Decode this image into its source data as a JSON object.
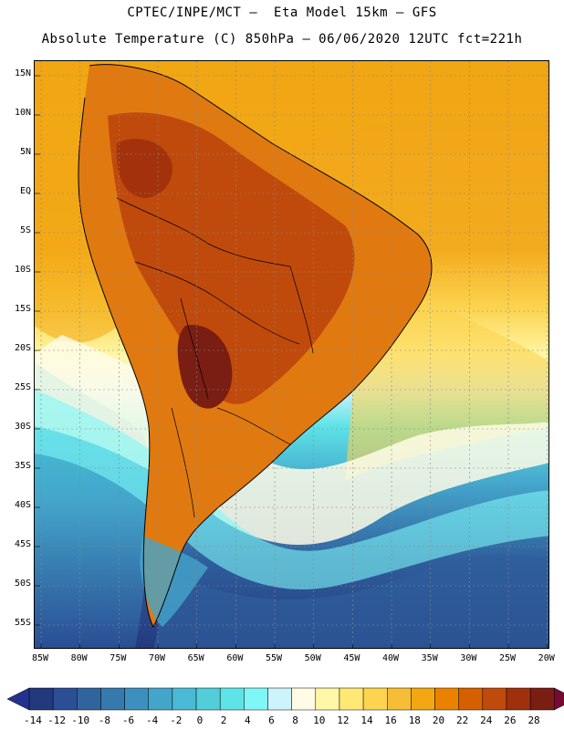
{
  "title_line1": "CPTEC/INPE/MCT –  Eta Model 15km – GFS",
  "title_line2": "Absolute Temperature (C) 850hPa – 06/06/2020 12UTC fct=221h",
  "lat_labels": [
    "15N",
    "10N",
    "5N",
    "EQ",
    "5S",
    "10S",
    "15S",
    "20S",
    "25S",
    "30S",
    "35S",
    "40S",
    "45S",
    "50S",
    "55S"
  ],
  "lon_labels": [
    "85W",
    "80W",
    "75W",
    "70W",
    "65W",
    "60W",
    "55W",
    "50W",
    "45W",
    "40W",
    "35W",
    "30W",
    "25W",
    "20W"
  ],
  "colorbar": {
    "labels": [
      "-14",
      "-12",
      "-10",
      "-8",
      "-6",
      "-4",
      "-2",
      "0",
      "2",
      "4",
      "6",
      "8",
      "10",
      "12",
      "14",
      "16",
      "18",
      "20",
      "22",
      "24",
      "26",
      "28"
    ],
    "colors": [
      "#22397e",
      "#2a4f95",
      "#30649f",
      "#3579ad",
      "#3d8fbe",
      "#44a5cb",
      "#4bbad6",
      "#51ced9",
      "#5ee3e7",
      "#7ff7f7",
      "#cdf3fb",
      "#fffbe6",
      "#fff6a6",
      "#ffe873",
      "#fcd44f",
      "#f6bd37",
      "#f3a712",
      "#ea8200",
      "#d66000",
      "#c04a0c",
      "#a0300c",
      "#7a1d12"
    ],
    "under_color": "#24328e",
    "over_color": "#770a32"
  }
}
